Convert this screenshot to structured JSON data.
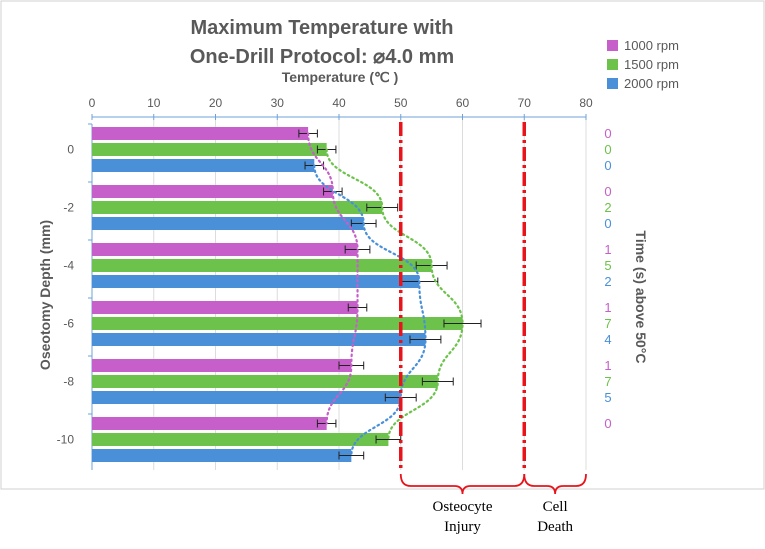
{
  "chart_data": {
    "type": "bar",
    "orientation": "horizontal",
    "title_lines": [
      "Maximum Temperature with",
      "One-Drill Protocol: ⌀4.0 mm"
    ],
    "xlabel": "Temperature (℃ )",
    "ylabel": "Oseotomy Depth (mm)",
    "right_label": "Time (s) above 50°C",
    "xlim": [
      0,
      80
    ],
    "x_ticks": [
      "0",
      "10",
      "20",
      "30",
      "40",
      "50",
      "60",
      "70",
      "80"
    ],
    "categories": [
      "0",
      "-2",
      "-4",
      "-6",
      "-8",
      "-10"
    ],
    "series": [
      {
        "name": "1000 rpm",
        "color": "#c65fc9",
        "values": [
          35,
          39,
          43,
          43,
          42,
          38
        ],
        "errors": [
          1.5,
          1.5,
          2,
          1.5,
          2,
          1.5
        ],
        "time_above_50": [
          "0",
          "0",
          "1",
          "1",
          "1",
          "0"
        ]
      },
      {
        "name": "1500 rpm",
        "color": "#6cc24a",
        "values": [
          38,
          47,
          55,
          60,
          56,
          48
        ],
        "errors": [
          1.5,
          2.5,
          2.5,
          3,
          2.5,
          2
        ],
        "time_above_50": [
          "0",
          "2",
          "5",
          "7",
          "7",
          ""
        ]
      },
      {
        "name": "2000 rpm",
        "color": "#4a90d9",
        "values": [
          36,
          44,
          53,
          54,
          50,
          42
        ],
        "errors": [
          1.5,
          2,
          3,
          2.5,
          2.5,
          2
        ],
        "time_above_50": [
          "0",
          "0",
          "2",
          "4",
          "5",
          ""
        ]
      }
    ],
    "thresholds": [
      {
        "value": 50,
        "label_lines": [
          "Osteocyte",
          "Injury"
        ],
        "color": "#e8141c"
      },
      {
        "value": 70,
        "label_lines": [
          "Cell",
          "Death"
        ],
        "color": "#e8141c"
      }
    ],
    "legend_position": "top-right"
  }
}
